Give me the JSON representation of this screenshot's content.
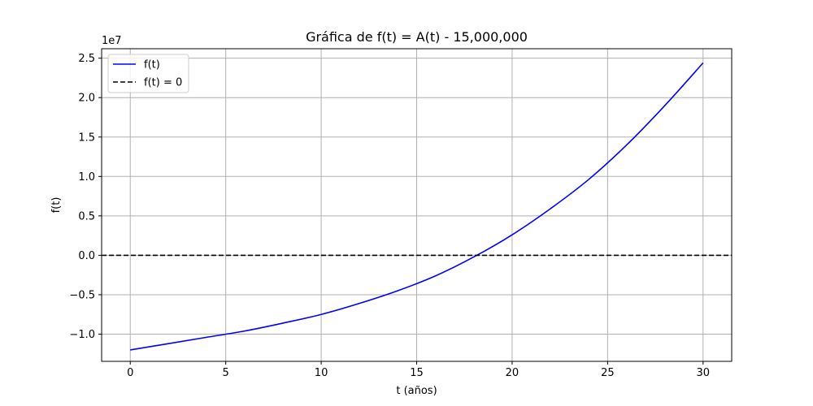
{
  "chart_data": {
    "type": "line",
    "title": "Gráfica de f(t) = A(t) - 15,000,000",
    "xlabel": "t (años)",
    "ylabel": "f(t)",
    "y_offset_label": "1e7",
    "xlim": [
      -1.5,
      31.5
    ],
    "ylim": [
      -13.45,
      26.2
    ],
    "x_ticks": [
      0,
      5,
      10,
      15,
      20,
      25,
      30
    ],
    "x_tick_labels": [
      "0",
      "5",
      "10",
      "15",
      "20",
      "25",
      "30"
    ],
    "y_ticks": [
      -10,
      -5,
      0,
      5,
      10,
      15,
      20,
      25
    ],
    "y_tick_labels": [
      "−1.0",
      "−0.5",
      "0.0",
      "0.5",
      "1.0",
      "1.5",
      "2.0",
      "2.5"
    ],
    "y_scale_note": "values in units of 1e6 (axis shows ×1e7)",
    "grid": true,
    "legend_position": "top-left",
    "series": [
      {
        "name": "f(t)",
        "color": "#0000ff",
        "style": "solid",
        "x": [
          0,
          2,
          4,
          6,
          8,
          10,
          12,
          14,
          16,
          18,
          20,
          22,
          24,
          26,
          28,
          30
        ],
        "values": [
          -12.0,
          -11.2,
          -10.4,
          -9.6,
          -8.6,
          -7.5,
          -6.1,
          -4.5,
          -2.6,
          -0.2,
          2.6,
          5.9,
          9.6,
          14.0,
          19.0,
          24.4
        ]
      },
      {
        "name": "f(t) = 0",
        "color": "#000000",
        "style": "dashed",
        "constant": 0
      }
    ]
  }
}
